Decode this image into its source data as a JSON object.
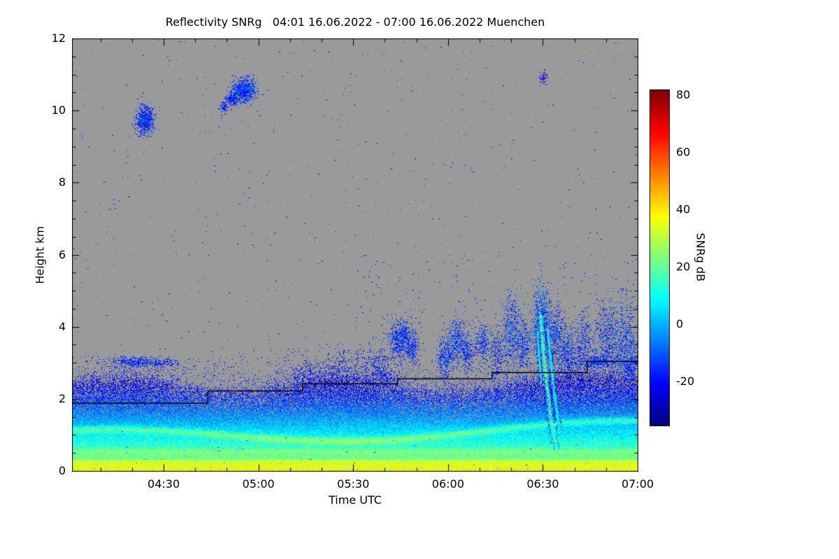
{
  "chart_data": {
    "type": "heatmap",
    "title": "Reflectivity SNRg   04:01 16.06.2022 - 07:00 16.06.2022 Muenchen",
    "xlabel": "Time UTC",
    "ylabel": "Height km",
    "x_range_minutes": [
      1,
      180
    ],
    "x_ticks": [
      {
        "t": 30,
        "label": "04:30"
      },
      {
        "t": 60,
        "label": "05:00"
      },
      {
        "t": 90,
        "label": "05:30"
      },
      {
        "t": 120,
        "label": "06:00"
      },
      {
        "t": 150,
        "label": "06:30"
      },
      {
        "t": 180,
        "label": "07:00"
      }
    ],
    "x_minor_step_min": 10,
    "y_range_km": [
      0,
      12
    ],
    "y_ticks": [
      {
        "v": 0,
        "label": "0"
      },
      {
        "v": 2,
        "label": "2"
      },
      {
        "v": 4,
        "label": "4"
      },
      {
        "v": 6,
        "label": "6"
      },
      {
        "v": 8,
        "label": "8"
      },
      {
        "v": 10,
        "label": "10"
      },
      {
        "v": 12,
        "label": "12"
      }
    ],
    "y_minor_step_km": 0.5,
    "grid": false,
    "background_color": "#9a9a9a",
    "colorbar": {
      "label": "SNRg dB",
      "vmin": -35,
      "vmax": 82,
      "colormap": "jet",
      "ticks": [
        {
          "v": 80,
          "label": "80"
        },
        {
          "v": 60,
          "label": "60"
        },
        {
          "v": 40,
          "label": "40"
        },
        {
          "v": 20,
          "label": "20"
        },
        {
          "v": 0,
          "label": "0"
        },
        {
          "v": -20,
          "label": "-20"
        }
      ]
    },
    "render": {
      "seed": 7,
      "value_range": [
        -35,
        82
      ],
      "boundary_layer": {
        "top_base": 2.35,
        "top_amp": 0.22,
        "top_period_min": 11,
        "top_rise_after_min": 150,
        "top_rise_rate": 0.012,
        "surface_value": 30,
        "lapse_per_km": 22,
        "surface_band_top_km": 0.32,
        "surface_band_boost": 8,
        "layer2_h": 0.55,
        "layer2_boost": 6,
        "residual_base": 0.92,
        "residual_amp": 0.22,
        "residual_period_min": 26,
        "residual_drift": 0.0015,
        "residual_boost": 14,
        "noise": 8,
        "dropout_start_km": 1.3,
        "dropout_max_p": 0.55,
        "topfade_p": 0.4,
        "topfade_scale_km": 0.2
      },
      "speckle": {
        "n_uniform": 800,
        "v_min": -27,
        "v_max": -13,
        "bands": [
          {
            "t0": 55,
            "t1": 180,
            "h0": 2.2,
            "h1": 3.4,
            "n": 550
          },
          {
            "t0": 5,
            "t1": 55,
            "h0": 2.6,
            "h1": 3.2,
            "n": 150
          },
          {
            "t0": 90,
            "t1": 180,
            "h0": 3.8,
            "h1": 6.0,
            "n": 160
          }
        ]
      },
      "clouds_t_h_tw_hw_n_v0_v1": [
        [
          24,
          9.75,
          1.4,
          0.2,
          800,
          -24,
          -8
        ],
        [
          55.5,
          10.58,
          1.8,
          0.16,
          950,
          -24,
          -6
        ],
        [
          51.5,
          10.32,
          1.0,
          0.1,
          220,
          -24,
          -10
        ],
        [
          49,
          10.1,
          0.7,
          0.08,
          110,
          -24,
          -10
        ],
        [
          21,
          3.03,
          4.0,
          0.07,
          420,
          -22,
          -10
        ],
        [
          30,
          3.0,
          2.5,
          0.06,
          120,
          -24,
          -12
        ],
        [
          75,
          2.6,
          3.0,
          0.22,
          220,
          -26,
          -14
        ],
        [
          85,
          2.8,
          3.0,
          0.28,
          200,
          -26,
          -14
        ],
        [
          97,
          2.95,
          3.5,
          0.28,
          320,
          -26,
          -12
        ],
        [
          100,
          2.55,
          2.5,
          0.18,
          180,
          -26,
          -14
        ],
        [
          105,
          3.7,
          2.0,
          0.26,
          750,
          -24,
          -6
        ],
        [
          108.5,
          3.35,
          1.1,
          0.2,
          240,
          -24,
          -8
        ],
        [
          119,
          3.15,
          1.4,
          0.3,
          380,
          -24,
          -8
        ],
        [
          122.5,
          3.6,
          1.4,
          0.33,
          420,
          -24,
          -6
        ],
        [
          126,
          3.3,
          1.4,
          0.3,
          330,
          -24,
          -8
        ],
        [
          131,
          3.6,
          1.1,
          0.25,
          240,
          -24,
          -8
        ],
        [
          135,
          3.1,
          1.4,
          0.4,
          280,
          -26,
          -10
        ],
        [
          140,
          3.85,
          1.8,
          0.5,
          650,
          -24,
          -4
        ],
        [
          144,
          3.45,
          1.1,
          0.33,
          280,
          -24,
          -8
        ],
        [
          149.5,
          4.05,
          1.6,
          0.5,
          1100,
          -22,
          0
        ],
        [
          154,
          3.75,
          1.4,
          0.45,
          450,
          -24,
          -6
        ],
        [
          158,
          3.3,
          1.6,
          0.4,
          420,
          -24,
          -8
        ],
        [
          163,
          3.55,
          1.4,
          0.42,
          330,
          -24,
          -8
        ],
        [
          168,
          3.05,
          4.5,
          0.09,
          520,
          -22,
          -8
        ],
        [
          170,
          3.8,
          2.0,
          0.5,
          550,
          -24,
          -6
        ],
        [
          176,
          3.5,
          2.0,
          0.65,
          750,
          -24,
          -4
        ],
        [
          178,
          2.9,
          1.3,
          0.28,
          280,
          -24,
          -10
        ],
        [
          150,
          10.9,
          0.6,
          0.1,
          60,
          -26,
          -16
        ]
      ],
      "streak_filaments": [
        {
          "points": [
            [
              149.2,
              4.35
            ],
            [
              150.1,
              3.3
            ],
            [
              151.0,
              2.5
            ],
            [
              152.2,
              1.6
            ],
            [
              153.4,
              0.95
            ],
            [
              154.4,
              0.62
            ]
          ],
          "sigma_t": 0.5,
          "v_core": 16
        },
        {
          "points": [
            [
              151.4,
              3.9
            ],
            [
              152.6,
              2.9
            ],
            [
              153.9,
              1.9
            ],
            [
              155.2,
              1.15
            ]
          ],
          "sigma_t": 0.38,
          "v_core": 9
        },
        {
          "points": [
            [
              148.2,
              3.85
            ],
            [
              148.8,
              3.05
            ],
            [
              149.4,
              2.45
            ]
          ],
          "sigma_t": 0.3,
          "v_core": 8
        }
      ],
      "ceiling_steps": [
        [
          1,
          1.88
        ],
        [
          44,
          1.88
        ],
        [
          44,
          2.22
        ],
        [
          74,
          2.22
        ],
        [
          74,
          2.42
        ],
        [
          104,
          2.42
        ],
        [
          104,
          2.56
        ],
        [
          134,
          2.56
        ],
        [
          134,
          2.73
        ],
        [
          164,
          2.73
        ],
        [
          164,
          3.04
        ],
        [
          180,
          3.04
        ]
      ]
    }
  }
}
